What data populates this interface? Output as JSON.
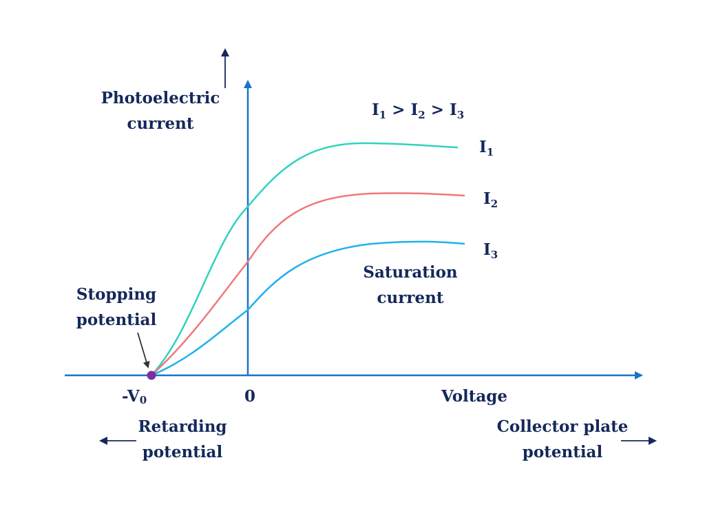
{
  "colors": {
    "axis": "#1a73c8",
    "text": "#14285a",
    "curve_i1": "#2ed3be",
    "curve_i2": "#f0787a",
    "curve_i3": "#1cb2ee",
    "stopping_point": "#7a2fa0",
    "pointer": "#333333"
  },
  "labels": {
    "y_axis": [
      "Photoelectric",
      "current"
    ],
    "x_axis": "Voltage",
    "origin": "0",
    "stopping_voltage": {
      "main": "-V",
      "sub": "0"
    },
    "relation": {
      "i1": "I",
      "s1": "1",
      "gt1": " > ",
      "i2": "I",
      "s2": "2",
      "gt2": " > ",
      "i3": "I",
      "s3": "3"
    },
    "stopping_potential": [
      "Stopping",
      "potential"
    ],
    "saturation_current": [
      "Saturation",
      "current"
    ],
    "retarding_potential": [
      "Retarding",
      "potential"
    ],
    "collector_potential": [
      "Collector plate",
      "potential"
    ]
  },
  "curves": [
    {
      "name_main": "I",
      "name_sub": "1"
    },
    {
      "name_main": "I",
      "name_sub": "2"
    },
    {
      "name_main": "I",
      "name_sub": "3"
    }
  ]
}
